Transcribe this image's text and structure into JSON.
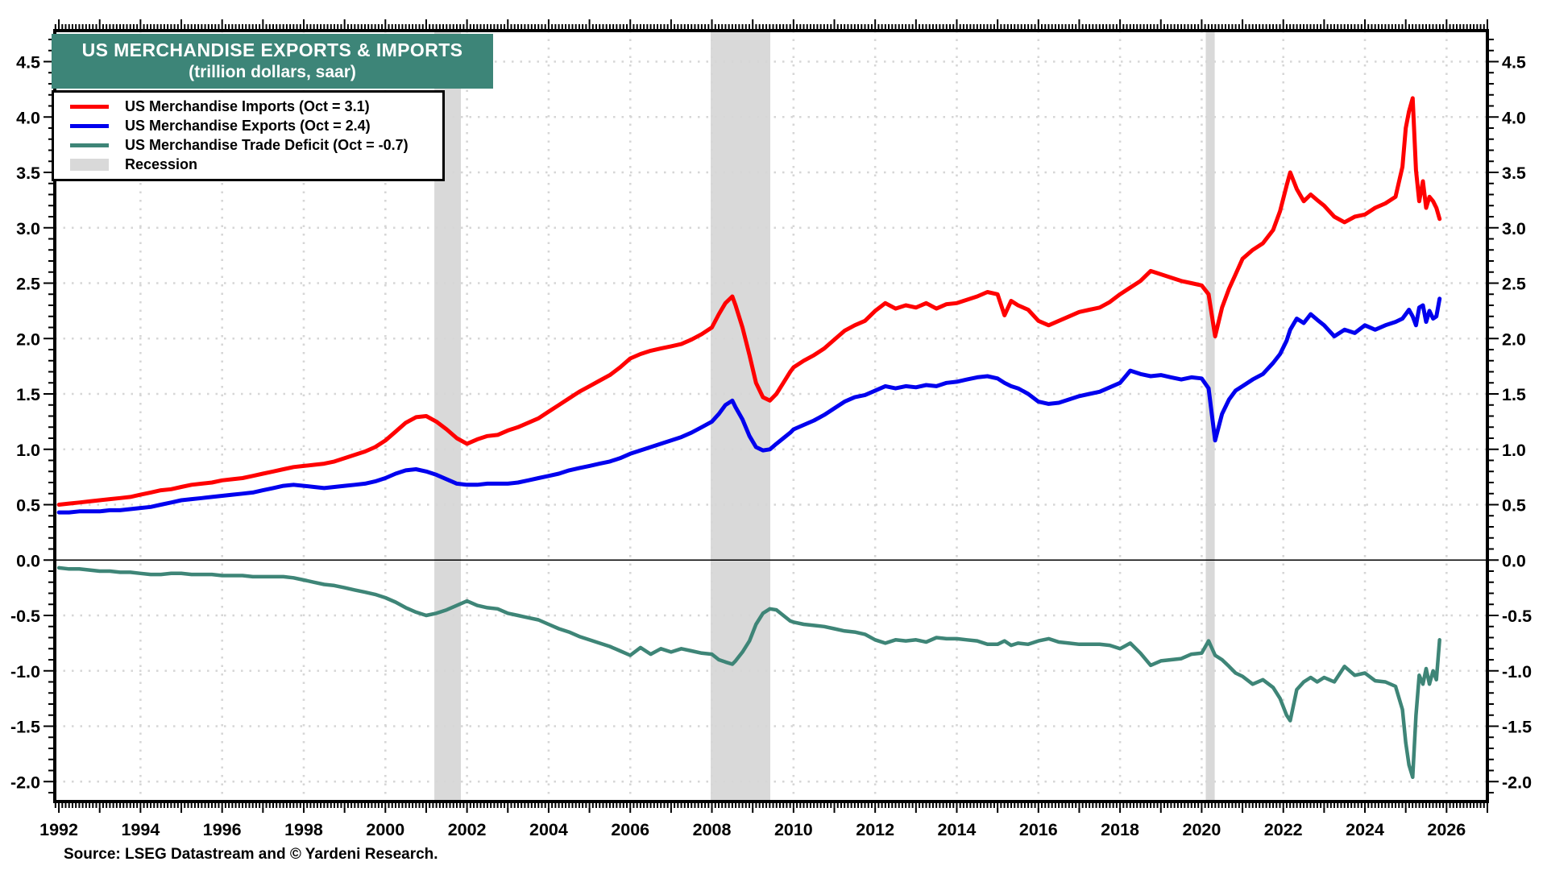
{
  "chart_data": {
    "type": "line",
    "title": "US MERCHANDISE EXPORTS & IMPORTS",
    "subtitle": "(trillion dollars, saar)",
    "source": "Source: LSEG Datastream and © Yardeni Research.",
    "xlim": [
      1991.9,
      2027.0
    ],
    "ylim": [
      -2.18,
      4.78
    ],
    "grid": true,
    "legend_position": "top-left",
    "colors": {
      "imports": "#FF0000",
      "exports": "#0000EE",
      "deficit": "#3E8577",
      "recession": "#D9D9D9",
      "grid": "#D6D6D6",
      "title_bg": "#3D8578"
    },
    "y_ticks": [
      {
        "value": 4.5,
        "label": "4.5"
      },
      {
        "value": 4.0,
        "label": "4.0"
      },
      {
        "value": 3.5,
        "label": "3.5"
      },
      {
        "value": 3.0,
        "label": "3.0"
      },
      {
        "value": 2.5,
        "label": "2.5"
      },
      {
        "value": 2.0,
        "label": "2.0"
      },
      {
        "value": 1.5,
        "label": "1.5"
      },
      {
        "value": 1.0,
        "label": "1.0"
      },
      {
        "value": 0.5,
        "label": "0.5"
      },
      {
        "value": 0.0,
        "label": "0.0"
      },
      {
        "value": -0.5,
        "label": "-0.5"
      },
      {
        "value": -1.0,
        "label": "-1.0"
      },
      {
        "value": -1.5,
        "label": "-1.5"
      },
      {
        "value": -2.0,
        "label": "-2.0"
      }
    ],
    "x_ticks": [
      {
        "value": 1992,
        "label": "1992"
      },
      {
        "value": 1994,
        "label": "1994"
      },
      {
        "value": 1996,
        "label": "1996"
      },
      {
        "value": 1998,
        "label": "1998"
      },
      {
        "value": 2000,
        "label": "2000"
      },
      {
        "value": 2002,
        "label": "2002"
      },
      {
        "value": 2004,
        "label": "2004"
      },
      {
        "value": 2006,
        "label": "2006"
      },
      {
        "value": 2008,
        "label": "2008"
      },
      {
        "value": 2010,
        "label": "2010"
      },
      {
        "value": 2012,
        "label": "2012"
      },
      {
        "value": 2014,
        "label": "2014"
      },
      {
        "value": 2016,
        "label": "2016"
      },
      {
        "value": 2018,
        "label": "2018"
      },
      {
        "value": 2020,
        "label": "2020"
      },
      {
        "value": 2022,
        "label": "2022"
      },
      {
        "value": 2024,
        "label": "2024"
      },
      {
        "value": 2026,
        "label": "2026"
      }
    ],
    "recessions": [
      [
        2001.2,
        2001.85
      ],
      [
        2007.97,
        2009.43
      ],
      [
        2020.1,
        2020.32
      ]
    ],
    "legend": [
      {
        "label": "US Merchandise Imports (Oct = 3.1)",
        "color": "#FF0000",
        "type": "line"
      },
      {
        "label": "US Merchandise Exports (Oct = 2.4)",
        "color": "#0000EE",
        "type": "line"
      },
      {
        "label": "US Merchandise Trade Deficit (Oct = -0.7)",
        "color": "#3E8577",
        "type": "line"
      },
      {
        "label": "Recession",
        "color": "#D9D9D9",
        "type": "band"
      }
    ],
    "x": [
      1992.0,
      1992.25,
      1992.5,
      1992.75,
      1993.0,
      1993.25,
      1993.5,
      1993.75,
      1994.0,
      1994.25,
      1994.5,
      1994.75,
      1995.0,
      1995.25,
      1995.5,
      1995.75,
      1996.0,
      1996.25,
      1996.5,
      1996.75,
      1997.0,
      1997.25,
      1997.5,
      1997.75,
      1998.0,
      1998.25,
      1998.5,
      1998.75,
      1999.0,
      1999.25,
      1999.5,
      1999.75,
      2000.0,
      2000.25,
      2000.5,
      2000.75,
      2001.0,
      2001.25,
      2001.5,
      2001.75,
      2002.0,
      2002.25,
      2002.5,
      2002.75,
      2003.0,
      2003.25,
      2003.5,
      2003.75,
      2004.0,
      2004.25,
      2004.5,
      2004.75,
      2005.0,
      2005.25,
      2005.5,
      2005.75,
      2006.0,
      2006.25,
      2006.5,
      2006.75,
      2007.0,
      2007.25,
      2007.5,
      2007.75,
      2008.0,
      2008.17,
      2008.33,
      2008.5,
      2008.58,
      2008.75,
      2008.92,
      2009.08,
      2009.25,
      2009.42,
      2009.58,
      2009.75,
      2009.92,
      2010.0,
      2010.25,
      2010.5,
      2010.75,
      2011.0,
      2011.25,
      2011.5,
      2011.75,
      2012.0,
      2012.25,
      2012.5,
      2012.75,
      2013.0,
      2013.25,
      2013.5,
      2013.75,
      2014.0,
      2014.25,
      2014.5,
      2014.75,
      2015.0,
      2015.17,
      2015.33,
      2015.5,
      2015.75,
      2016.0,
      2016.25,
      2016.5,
      2016.75,
      2017.0,
      2017.25,
      2017.5,
      2017.75,
      2018.0,
      2018.25,
      2018.5,
      2018.75,
      2019.0,
      2019.25,
      2019.5,
      2019.75,
      2020.0,
      2020.17,
      2020.33,
      2020.5,
      2020.67,
      2020.83,
      2021.0,
      2021.25,
      2021.5,
      2021.75,
      2021.92,
      2022.08,
      2022.17,
      2022.33,
      2022.5,
      2022.67,
      2022.83,
      2023.0,
      2023.25,
      2023.5,
      2023.75,
      2024.0,
      2024.25,
      2024.5,
      2024.75,
      2024.92,
      2025.0,
      2025.08,
      2025.17,
      2025.25,
      2025.33,
      2025.42,
      2025.5,
      2025.58,
      2025.67,
      2025.75,
      2025.83
    ],
    "series": [
      {
        "id": "imports",
        "name": "US Merchandise Imports (Oct = 3.1)",
        "color": "#FF0000",
        "width": 5,
        "values": [
          0.5,
          0.51,
          0.52,
          0.53,
          0.54,
          0.55,
          0.56,
          0.57,
          0.59,
          0.61,
          0.63,
          0.64,
          0.66,
          0.68,
          0.69,
          0.7,
          0.72,
          0.73,
          0.74,
          0.76,
          0.78,
          0.8,
          0.82,
          0.84,
          0.85,
          0.86,
          0.87,
          0.89,
          0.92,
          0.95,
          0.98,
          1.02,
          1.08,
          1.16,
          1.24,
          1.29,
          1.3,
          1.25,
          1.18,
          1.1,
          1.05,
          1.09,
          1.12,
          1.13,
          1.17,
          1.2,
          1.24,
          1.28,
          1.34,
          1.4,
          1.46,
          1.52,
          1.57,
          1.62,
          1.67,
          1.74,
          1.82,
          1.86,
          1.89,
          1.91,
          1.93,
          1.95,
          1.99,
          2.04,
          2.1,
          2.22,
          2.32,
          2.38,
          2.3,
          2.1,
          1.85,
          1.6,
          1.47,
          1.44,
          1.5,
          1.6,
          1.7,
          1.74,
          1.8,
          1.85,
          1.91,
          1.99,
          2.07,
          2.12,
          2.16,
          2.25,
          2.32,
          2.27,
          2.3,
          2.28,
          2.32,
          2.27,
          2.31,
          2.32,
          2.35,
          2.38,
          2.42,
          2.4,
          2.21,
          2.34,
          2.3,
          2.26,
          2.16,
          2.12,
          2.16,
          2.2,
          2.24,
          2.26,
          2.28,
          2.33,
          2.4,
          2.46,
          2.52,
          2.61,
          2.58,
          2.55,
          2.52,
          2.5,
          2.48,
          2.4,
          2.02,
          2.28,
          2.45,
          2.58,
          2.72,
          2.8,
          2.86,
          2.98,
          3.15,
          3.38,
          3.5,
          3.35,
          3.24,
          3.3,
          3.25,
          3.2,
          3.1,
          3.05,
          3.1,
          3.12,
          3.18,
          3.22,
          3.28,
          3.55,
          3.9,
          4.05,
          4.17,
          3.52,
          3.24,
          3.42,
          3.18,
          3.28,
          3.24,
          3.18,
          3.08
        ]
      },
      {
        "id": "exports",
        "name": "US Merchandise Exports (Oct = 2.4)",
        "color": "#0000EE",
        "width": 5,
        "values": [
          0.43,
          0.43,
          0.44,
          0.44,
          0.44,
          0.45,
          0.45,
          0.46,
          0.47,
          0.48,
          0.5,
          0.52,
          0.54,
          0.55,
          0.56,
          0.57,
          0.58,
          0.59,
          0.6,
          0.61,
          0.63,
          0.65,
          0.67,
          0.68,
          0.67,
          0.66,
          0.65,
          0.66,
          0.67,
          0.68,
          0.69,
          0.71,
          0.74,
          0.78,
          0.81,
          0.82,
          0.8,
          0.77,
          0.73,
          0.69,
          0.68,
          0.68,
          0.69,
          0.69,
          0.69,
          0.7,
          0.72,
          0.74,
          0.76,
          0.78,
          0.81,
          0.83,
          0.85,
          0.87,
          0.89,
          0.92,
          0.96,
          0.99,
          1.02,
          1.05,
          1.08,
          1.11,
          1.15,
          1.2,
          1.25,
          1.32,
          1.4,
          1.44,
          1.38,
          1.27,
          1.12,
          1.02,
          0.99,
          1.0,
          1.05,
          1.1,
          1.15,
          1.18,
          1.22,
          1.26,
          1.31,
          1.37,
          1.43,
          1.47,
          1.49,
          1.53,
          1.57,
          1.55,
          1.57,
          1.56,
          1.58,
          1.57,
          1.6,
          1.61,
          1.63,
          1.65,
          1.66,
          1.64,
          1.6,
          1.57,
          1.55,
          1.5,
          1.43,
          1.41,
          1.42,
          1.45,
          1.48,
          1.5,
          1.52,
          1.56,
          1.6,
          1.71,
          1.68,
          1.66,
          1.67,
          1.65,
          1.63,
          1.65,
          1.64,
          1.55,
          1.08,
          1.32,
          1.45,
          1.53,
          1.57,
          1.63,
          1.68,
          1.78,
          1.86,
          1.98,
          2.08,
          2.18,
          2.14,
          2.22,
          2.17,
          2.12,
          2.02,
          2.08,
          2.05,
          2.12,
          2.08,
          2.12,
          2.15,
          2.18,
          2.22,
          2.26,
          2.2,
          2.12,
          2.28,
          2.3,
          2.15,
          2.25,
          2.18,
          2.2,
          2.36
        ]
      },
      {
        "id": "deficit",
        "name": "US Merchandise Trade Deficit (Oct = -0.7)",
        "color": "#3E8577",
        "width": 4.5,
        "values": [
          -0.07,
          -0.08,
          -0.08,
          -0.09,
          -0.1,
          -0.1,
          -0.11,
          -0.11,
          -0.12,
          -0.13,
          -0.13,
          -0.12,
          -0.12,
          -0.13,
          -0.13,
          -0.13,
          -0.14,
          -0.14,
          -0.14,
          -0.15,
          -0.15,
          -0.15,
          -0.15,
          -0.16,
          -0.18,
          -0.2,
          -0.22,
          -0.23,
          -0.25,
          -0.27,
          -0.29,
          -0.31,
          -0.34,
          -0.38,
          -0.43,
          -0.47,
          -0.5,
          -0.48,
          -0.45,
          -0.41,
          -0.37,
          -0.41,
          -0.43,
          -0.44,
          -0.48,
          -0.5,
          -0.52,
          -0.54,
          -0.58,
          -0.62,
          -0.65,
          -0.69,
          -0.72,
          -0.75,
          -0.78,
          -0.82,
          -0.86,
          -0.79,
          -0.85,
          -0.8,
          -0.83,
          -0.8,
          -0.82,
          -0.84,
          -0.85,
          -0.9,
          -0.92,
          -0.94,
          -0.91,
          -0.83,
          -0.73,
          -0.58,
          -0.48,
          -0.44,
          -0.45,
          -0.5,
          -0.55,
          -0.56,
          -0.58,
          -0.59,
          -0.6,
          -0.62,
          -0.64,
          -0.65,
          -0.67,
          -0.72,
          -0.75,
          -0.72,
          -0.73,
          -0.72,
          -0.74,
          -0.7,
          -0.71,
          -0.71,
          -0.72,
          -0.73,
          -0.76,
          -0.76,
          -0.73,
          -0.77,
          -0.75,
          -0.76,
          -0.73,
          -0.71,
          -0.74,
          -0.75,
          -0.76,
          -0.76,
          -0.76,
          -0.77,
          -0.8,
          -0.75,
          -0.84,
          -0.95,
          -0.91,
          -0.9,
          -0.89,
          -0.85,
          -0.84,
          -0.73,
          -0.86,
          -0.9,
          -0.96,
          -1.02,
          -1.05,
          -1.12,
          -1.08,
          -1.15,
          -1.25,
          -1.4,
          -1.45,
          -1.17,
          -1.1,
          -1.06,
          -1.1,
          -1.06,
          -1.1,
          -0.96,
          -1.04,
          -1.02,
          -1.09,
          -1.1,
          -1.14,
          -1.35,
          -1.65,
          -1.85,
          -1.96,
          -1.4,
          -1.04,
          -1.12,
          -0.98,
          -1.12,
          -1.0,
          -1.08,
          -0.72
        ]
      }
    ]
  }
}
